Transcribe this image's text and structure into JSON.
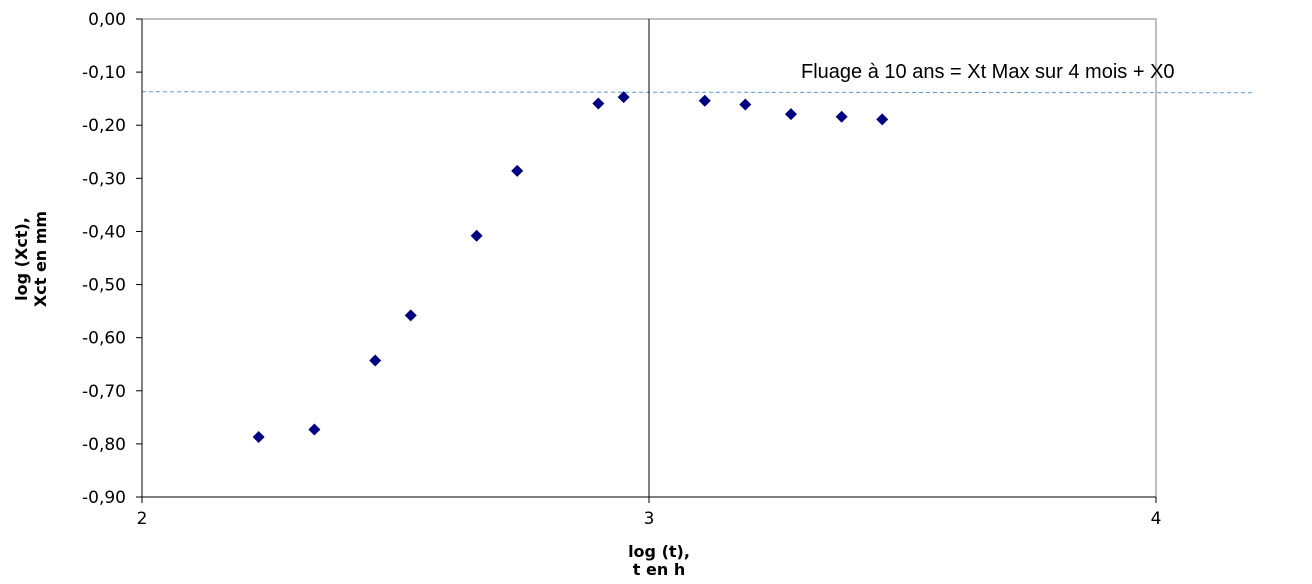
{
  "chart_data": {
    "type": "scatter",
    "xlabel_line1": "log (t),",
    "xlabel_line2": "t en h",
    "ylabel_line1": "log (Xct),",
    "ylabel_line2": "Xct en mm",
    "xlim": [
      2,
      4
    ],
    "ylim": [
      -0.9,
      0.0
    ],
    "x_ticks": [
      2,
      3,
      4
    ],
    "x_tick_labels": [
      "2",
      "3",
      "4"
    ],
    "y_ticks": [
      0.0,
      -0.1,
      -0.2,
      -0.3,
      -0.4,
      -0.5,
      -0.6,
      -0.7,
      -0.8,
      -0.9
    ],
    "y_tick_labels": [
      "0,00",
      "-0,10",
      "-0,20",
      "-0,30",
      "-0,40",
      "-0,50",
      "-0,60",
      "-0,70",
      "-0,80",
      "-0,90"
    ],
    "grid": false,
    "series": [
      {
        "color": "#000080",
        "marker": "diamond",
        "points": [
          {
            "x": 2.23,
            "y": -0.787
          },
          {
            "x": 2.34,
            "y": -0.773
          },
          {
            "x": 2.46,
            "y": -0.643
          },
          {
            "x": 2.53,
            "y": -0.558
          },
          {
            "x": 2.66,
            "y": -0.408
          },
          {
            "x": 2.74,
            "y": -0.286
          },
          {
            "x": 2.9,
            "y": -0.159
          },
          {
            "x": 2.95,
            "y": -0.147
          },
          {
            "x": 3.11,
            "y": -0.154
          },
          {
            "x": 3.19,
            "y": -0.161
          },
          {
            "x": 3.28,
            "y": -0.179
          },
          {
            "x": 3.38,
            "y": -0.184
          },
          {
            "x": 3.46,
            "y": -0.189
          }
        ]
      }
    ],
    "reference_vline": {
      "x": 3.0,
      "color": "#000000"
    },
    "reference_hline": {
      "y": -0.137,
      "color": "#5b9bd5",
      "style": "dashed"
    },
    "annotation": "Fluage à 10 ans = Xt Max sur 4 mois + X0"
  }
}
